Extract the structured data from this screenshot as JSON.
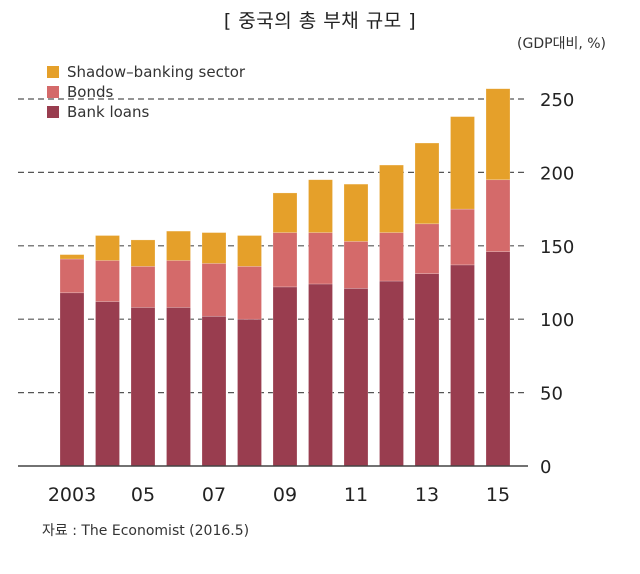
{
  "header": {
    "title": "[ 중국의 총 부채 규모 ]",
    "unit": "(GDP대비, %)"
  },
  "source": "자료 : The Economist (2016.5)",
  "colors": {
    "shadow": "#e5a02a",
    "bonds": "#d46a6a",
    "loans": "#993d4f",
    "grid": "#555555",
    "axis": "#444444"
  },
  "chart_data": {
    "type": "bar",
    "stacked": true,
    "title": "[ 중국의 총 부채 규모 ]",
    "subtitle": "(GDP대비, %)",
    "xlabel": "",
    "ylabel": "",
    "ylim": [
      0,
      250
    ],
    "yticks": [
      0,
      50,
      100,
      150,
      200,
      250
    ],
    "ytick_side": "right",
    "grid": "horizontal-dashed",
    "legend_position": "top-left",
    "categories": [
      "2003",
      "2004",
      "2005",
      "2006",
      "2007",
      "2008",
      "2009",
      "2010",
      "2011",
      "2012",
      "2013",
      "2014",
      "2015"
    ],
    "xtick_labels": [
      {
        "category": "2003",
        "label": "2003"
      },
      {
        "category": "2005",
        "label": "05"
      },
      {
        "category": "2007",
        "label": "07"
      },
      {
        "category": "2009",
        "label": "09"
      },
      {
        "category": "2011",
        "label": "11"
      },
      {
        "category": "2013",
        "label": "13"
      },
      {
        "category": "2015",
        "label": "15"
      }
    ],
    "series": [
      {
        "name": "Bank loans",
        "key": "loans",
        "values": [
          118,
          112,
          108,
          108,
          102,
          100,
          122,
          124,
          121,
          126,
          131,
          137,
          146
        ]
      },
      {
        "name": "Bonds",
        "key": "bonds",
        "values": [
          23,
          28,
          28,
          32,
          36,
          36,
          37,
          35,
          32,
          33,
          34,
          38,
          49
        ]
      },
      {
        "name": "Shadow-banking sector",
        "key": "shadow",
        "values": [
          3,
          17,
          18,
          20,
          21,
          21,
          27,
          36,
          39,
          46,
          55,
          63,
          62
        ]
      }
    ],
    "legend": [
      "Shadow–banking sector",
      "Bonds",
      "Bank loans"
    ]
  }
}
